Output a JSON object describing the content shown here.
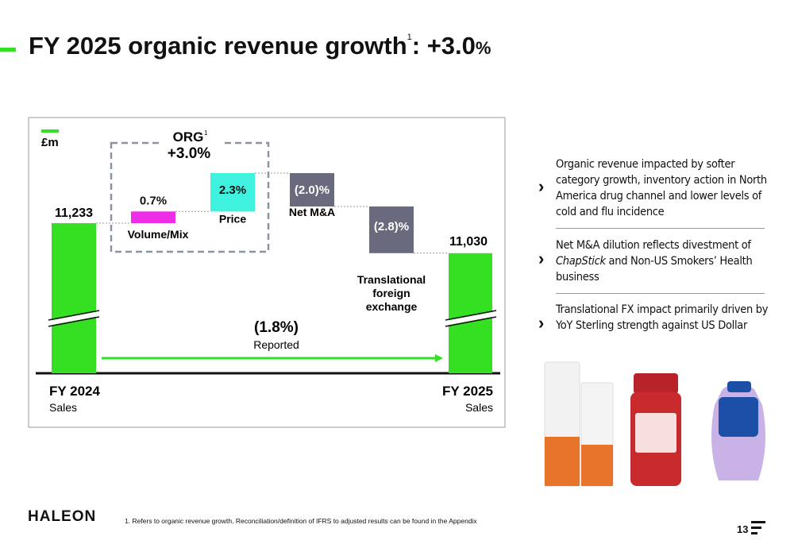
{
  "header": {
    "title": "FY 2025 organic revenue growth",
    "title_footnote": "1",
    "title_suffix": ": +3.0",
    "title_percent": "%"
  },
  "chart": {
    "type": "waterfall",
    "unit": "£m",
    "org_label": "ORG",
    "org_footnote": "1",
    "org_value": "+3.0%",
    "start": {
      "value": 11233,
      "value_label": "11,233",
      "label": "FY 2024",
      "sublabel": "Sales",
      "color": "#35e023"
    },
    "steps": [
      {
        "label": "Volume/Mix",
        "value": 0.7,
        "value_label": "0.7%",
        "color": "#ee2ee6"
      },
      {
        "label": "Price",
        "value": 2.3,
        "value_label": "2.3%",
        "color": "#3ff2e0"
      },
      {
        "label": "Net M&A",
        "value": -2.0,
        "value_label": "(2.0)%",
        "color": "#6a6a7e"
      },
      {
        "label": "Translational foreign exchange",
        "value": -2.8,
        "value_label": "(2.8)%",
        "color": "#6a6a7e"
      }
    ],
    "end": {
      "value": 11030,
      "value_label": "11,030",
      "label": "FY 2025",
      "sublabel": "Sales",
      "color": "#35e023"
    },
    "reported": {
      "value": -1.8,
      "value_label": "(1.8%)",
      "label": "Reported"
    }
  },
  "bullets": [
    {
      "parts": [
        "Organic revenue impacted by softer category growth, inventory action in North America drug channel and lower levels of cold and flu incidence"
      ]
    },
    {
      "parts": [
        "Net M&A dilution reflects divestment of ",
        "ChapStick",
        " and Non-US Smokers’ Health business"
      ]
    },
    {
      "parts": [
        "Translational FX impact primarily driven by YoY Sterling strength against US Dollar"
      ]
    }
  ],
  "footer": {
    "logo": "HALEON",
    "footnote": "1. Refers to organic revenue growth. Reconciliation/definition of IFRS to adjusted results can be found in the Appendix",
    "page": "13"
  }
}
